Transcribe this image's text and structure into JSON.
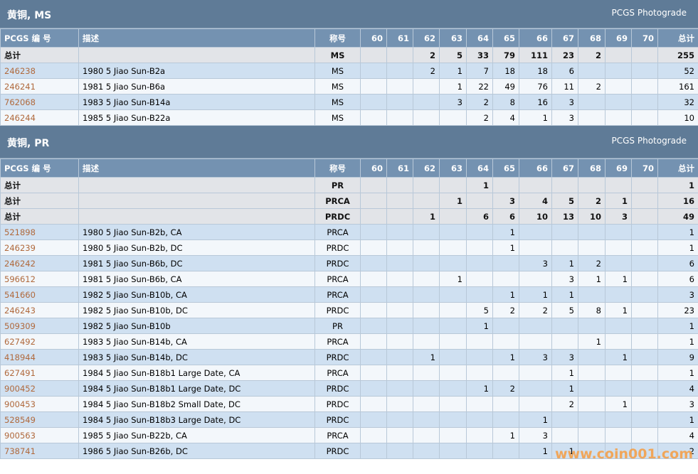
{
  "sections": [
    {
      "title": "黄铜, MS",
      "subtitle": "PCGS Photograde",
      "columns": [
        "PCGS 编 号",
        "描述",
        "称号",
        60,
        61,
        62,
        63,
        64,
        65,
        66,
        67,
        68,
        69,
        70,
        "总计"
      ],
      "rows": [
        [
          "总计",
          null,
          "MS",
          null,
          null,
          2,
          5,
          33,
          79,
          111,
          23,
          2,
          null,
          null,
          255
        ],
        [
          "246238",
          "1980 5 Jiao Sun-B2a",
          "MS",
          null,
          null,
          2,
          1,
          7,
          18,
          18,
          6,
          null,
          null,
          null,
          52
        ],
        [
          "246241",
          "1981 5 Jiao Sun-B6a",
          "MS",
          null,
          null,
          null,
          1,
          22,
          49,
          76,
          11,
          2,
          null,
          null,
          161
        ],
        [
          "762068",
          "1983 5 Jiao Sun-B14a",
          "MS",
          null,
          null,
          null,
          3,
          2,
          8,
          16,
          3,
          null,
          null,
          null,
          32
        ],
        [
          "246244",
          "1985 5 Jiao Sun-B22a",
          "MS",
          null,
          null,
          null,
          null,
          2,
          4,
          1,
          3,
          null,
          null,
          null,
          10
        ]
      ]
    },
    {
      "title": "黄铜, PR",
      "subtitle": "PCGS Photograde",
      "columns": [
        "PCGS 编 号",
        "描述",
        "称号",
        60,
        61,
        62,
        63,
        64,
        65,
        66,
        67,
        68,
        69,
        70,
        "总计"
      ],
      "rows": [
        [
          "总计",
          null,
          "PR",
          null,
          null,
          null,
          null,
          1,
          null,
          null,
          null,
          null,
          null,
          null,
          1
        ],
        [
          "总计",
          null,
          "PRCA",
          null,
          null,
          null,
          1,
          null,
          3,
          4,
          5,
          2,
          1,
          null,
          16
        ],
        [
          "总计",
          null,
          "PRDC",
          null,
          null,
          1,
          null,
          6,
          6,
          10,
          13,
          10,
          3,
          null,
          49
        ],
        [
          "521898",
          "1980 5 Jiao Sun-B2b, CA",
          "PRCA",
          null,
          null,
          null,
          null,
          null,
          1,
          null,
          null,
          null,
          null,
          null,
          1
        ],
        [
          "246239",
          "1980 5 Jiao Sun-B2b, DC",
          "PRDC",
          null,
          null,
          null,
          null,
          null,
          1,
          null,
          null,
          null,
          null,
          null,
          1
        ],
        [
          "246242",
          "1981 5 Jiao Sun-B6b, DC",
          "PRDC",
          null,
          null,
          null,
          null,
          null,
          null,
          3,
          1,
          2,
          null,
          null,
          6
        ],
        [
          "596612",
          "1981 5 Jiao Sun-B6b, CA",
          "PRCA",
          null,
          null,
          null,
          1,
          null,
          null,
          null,
          3,
          1,
          1,
          null,
          6
        ],
        [
          "541660",
          "1982 5 Jiao Sun-B10b, CA",
          "PRCA",
          null,
          null,
          null,
          null,
          null,
          1,
          1,
          1,
          null,
          null,
          null,
          3
        ],
        [
          "246243",
          "1982 5 Jiao Sun-B10b, DC",
          "PRDC",
          null,
          null,
          null,
          null,
          5,
          2,
          2,
          5,
          8,
          1,
          null,
          23
        ],
        [
          "509309",
          "1982 5 Jiao Sun-B10b",
          "PR",
          null,
          null,
          null,
          null,
          1,
          null,
          null,
          null,
          null,
          null,
          null,
          1
        ],
        [
          "627492",
          "1983 5 Jiao Sun-B14b, CA",
          "PRCA",
          null,
          null,
          null,
          null,
          null,
          null,
          null,
          null,
          1,
          null,
          null,
          1
        ],
        [
          "418944",
          "1983 5 Jiao Sun-B14b, DC",
          "PRDC",
          null,
          null,
          1,
          null,
          null,
          1,
          3,
          3,
          null,
          1,
          null,
          9
        ],
        [
          "627491",
          "1984 5 Jiao Sun-B18b1 Large Date, CA",
          "PRCA",
          null,
          null,
          null,
          null,
          null,
          null,
          null,
          1,
          null,
          null,
          null,
          1
        ],
        [
          "900452",
          "1984 5 Jiao Sun-B18b1 Large Date, DC",
          "PRDC",
          null,
          null,
          null,
          null,
          1,
          2,
          null,
          1,
          null,
          null,
          null,
          4
        ],
        [
          "900453",
          "1984 5 Jiao Sun-B18b2 Small Date, DC",
          "PRDC",
          null,
          null,
          null,
          null,
          null,
          null,
          null,
          2,
          null,
          1,
          null,
          3
        ],
        [
          "528549",
          "1984 5 Jiao Sun-B18b3 Large Date, DC",
          "PRDC",
          null,
          null,
          null,
          null,
          null,
          null,
          1,
          null,
          null,
          null,
          null,
          1
        ],
        [
          "900563",
          "1985 5 Jiao Sun-B22b, CA",
          "PRCA",
          null,
          null,
          null,
          null,
          null,
          1,
          3,
          null,
          null,
          null,
          null,
          4
        ],
        [
          "738741",
          "1986 5 Jiao Sun-B26b, DC",
          "PRDC",
          null,
          null,
          null,
          null,
          null,
          null,
          1,
          1,
          null,
          null,
          null,
          2
        ]
      ]
    }
  ],
  "watermark": "www.coin001.com"
}
